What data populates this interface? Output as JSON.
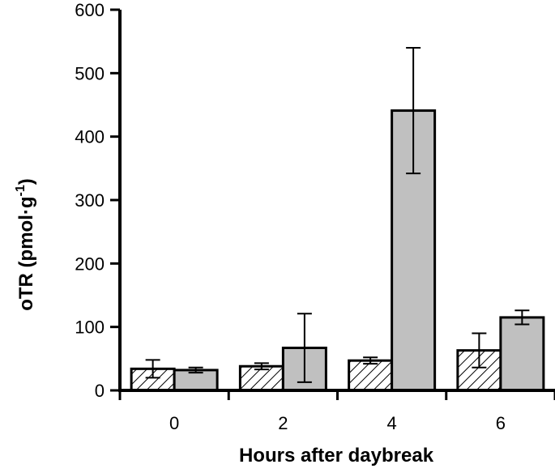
{
  "chart_data": {
    "type": "bar",
    "xlabel": "Hours after daybreak",
    "ylabel": {
      "prefix": "oTR (pmol·g",
      "superscript": "-1",
      "suffix": ")"
    },
    "categories": [
      "0",
      "2",
      "4",
      "6"
    ],
    "ylim": [
      0,
      600
    ],
    "yticks": [
      "0",
      "100",
      "200",
      "300",
      "400",
      "500",
      "600"
    ],
    "grid": false,
    "series": [
      {
        "fill": "hatched",
        "values": [
          34,
          38,
          47,
          63
        ],
        "errors": [
          14,
          5,
          5,
          27
        ]
      },
      {
        "fill": "#c0c0c0",
        "values": [
          32,
          67,
          441,
          115
        ],
        "errors": [
          4,
          54,
          99,
          11
        ]
      }
    ]
  }
}
